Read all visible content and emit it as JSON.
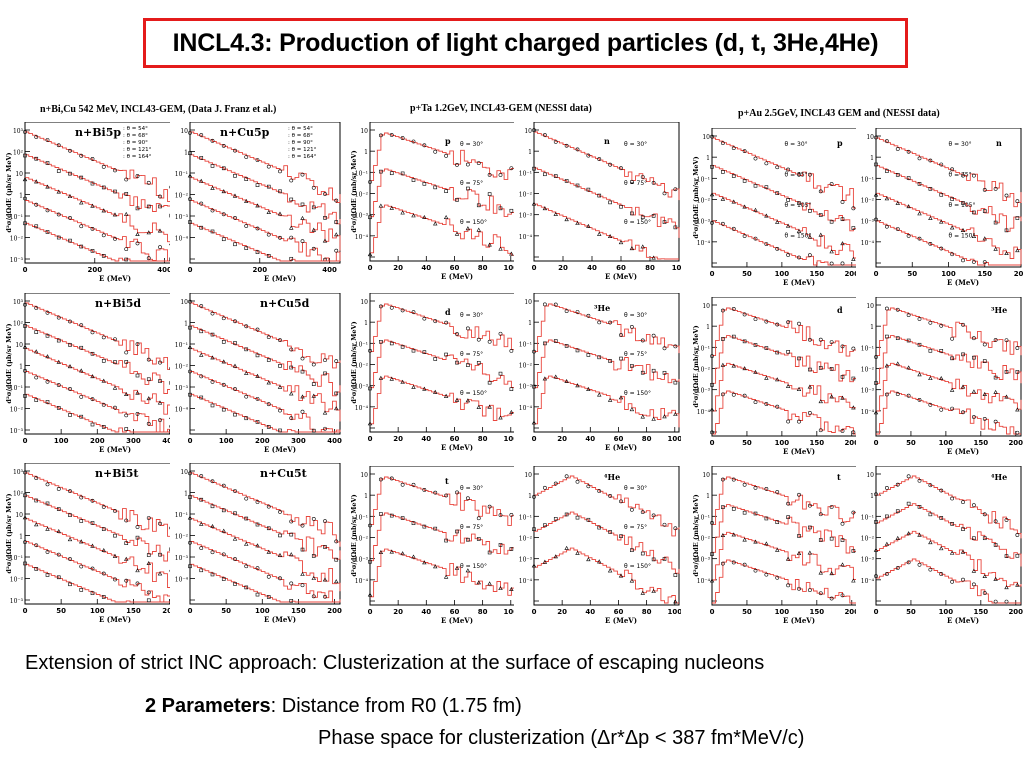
{
  "title": "INCL4.3: Production of light charged particles (d, t, 3He,4He)",
  "groups": {
    "a": "n+Bi,Cu 542 MeV, INCL43-GEM, (Data J. Franz et al.)",
    "b": "p+Ta 1.2GeV, INCL43-GEM (NESSI data)",
    "c": "p+Au 2.5GeV, INCL43 GEM and (NESSI data)"
  },
  "xlabel": "E (MeV)",
  "ylabel_a": "d²σ/dΩdE  (μb/sr MeV)",
  "ylabel_b": "d²σ/dΩdE  (mb/sr MeV)",
  "angles_a": [
    ": θ = 54°",
    ": θ = 68°",
    ": θ = 90°",
    ": θ = 121°",
    ": θ = 164°"
  ],
  "angles_b": [
    "θ = 30°",
    "θ = 75°",
    "θ = 150°"
  ],
  "angles_c": [
    "θ = 30°",
    "θ = 75°",
    "θ = 105°",
    "θ = 150°"
  ],
  "panel_labels": {
    "bi5p": "n+Bi5p",
    "cu5p": "n+Cu5p",
    "bi5d": "n+Bi5d",
    "cu5d": "n+Cu5d",
    "bi5t": "n+Bi5t",
    "cu5t": "n+Cu5t",
    "ta_p": "p",
    "ta_n": "n",
    "ta_d": "d",
    "ta_3he": "³He",
    "ta_t": "t",
    "ta_4he": "⁴He",
    "au_p": "p",
    "au_n": "n",
    "au_d": "d",
    "au_3he": "³He",
    "au_t": "t",
    "au_4he": "⁴He"
  },
  "caption": {
    "line1": "Extension of strict INC approach: Clusterization at the surface of escaping nucleons",
    "bold": "2 Parameters",
    "line2": ": Distance from R0 (1.75 fm)",
    "line3": "Phase space for clusterization (Δr*Δp < 387 fm*MeV/c)"
  },
  "colors": {
    "accent": "#e41b1b",
    "model": "#e8453c"
  }
}
